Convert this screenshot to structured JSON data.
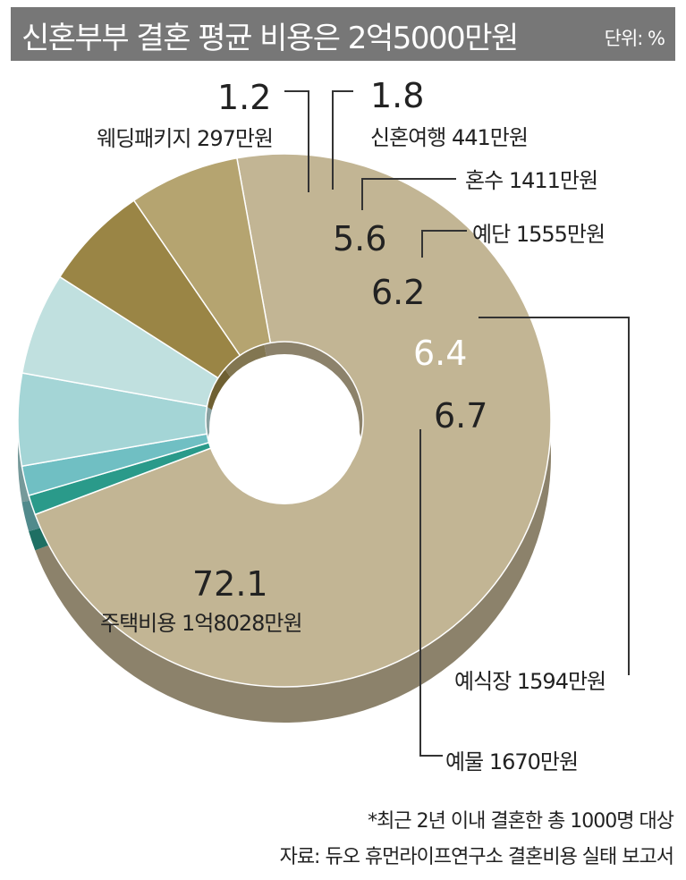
{
  "chart_data": {
    "type": "pie",
    "title": "신혼부부 결혼 평균 비용은 2억5000만원",
    "unit": "단위: %",
    "slices": [
      {
        "percent": "72.1",
        "value": 72.1,
        "name": "주택비용",
        "amount": "1억8028만원",
        "color": "#c2b594"
      },
      {
        "percent": "1.2",
        "value": 1.2,
        "name": "웨딩패키지",
        "amount": "297만원",
        "color": "#2a9a8a"
      },
      {
        "percent": "1.8",
        "value": 1.8,
        "name": "신혼여행",
        "amount": "441만원",
        "color": "#70bfc3"
      },
      {
        "percent": "5.6",
        "value": 5.6,
        "name": "혼수",
        "amount": "1411만원",
        "color": "#a4d5d6"
      },
      {
        "percent": "6.2",
        "value": 6.2,
        "name": "예단",
        "amount": "1555만원",
        "color": "#c0e0df"
      },
      {
        "percent": "6.4",
        "value": 6.4,
        "name": "예식장",
        "amount": "1594만원",
        "color": "#9a8545"
      },
      {
        "percent": "6.7",
        "value": 6.7,
        "name": "예물",
        "amount": "1670만원",
        "color": "#b5a470"
      }
    ]
  },
  "footnote": "*최근 2년 이내 결혼한 총 1000명 대상",
  "source": "자료: 듀오 휴먼라이프연구소 결혼비용 실태 보고서"
}
